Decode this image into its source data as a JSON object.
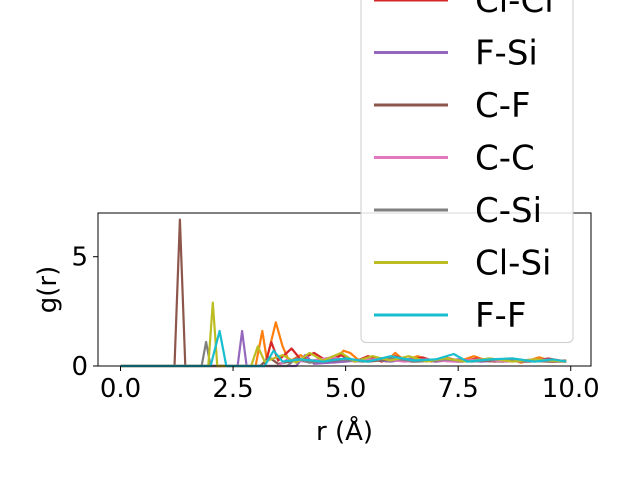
{
  "chart_data": {
    "type": "line",
    "title": "",
    "xlabel": "r (Å)",
    "ylabel": "g(r)",
    "xlim": [
      -0.5,
      10.45
    ],
    "ylim": [
      0,
      7.0
    ],
    "xticks": [
      0.0,
      2.5,
      5.0,
      7.5,
      10.0
    ],
    "xtick_labels": [
      "0.0",
      "2.5",
      "5.0",
      "7.5",
      "10.0"
    ],
    "yticks": [
      0,
      5
    ],
    "ytick_labels": [
      "0",
      "5"
    ],
    "grid": false,
    "legend_position": "upper-right (extends beyond axes top)",
    "series": [
      {
        "color": "#ff7f0e",
        "points": [
          [
            0,
            0
          ],
          [
            3.0,
            0
          ],
          [
            3.15,
            1.6
          ],
          [
            3.25,
            0.3
          ],
          [
            3.45,
            2.0
          ],
          [
            3.6,
            0.9
          ],
          [
            3.75,
            0.2
          ],
          [
            4.0,
            0.5
          ],
          [
            4.2,
            0.2
          ],
          [
            4.5,
            0.35
          ],
          [
            4.75,
            0.15
          ],
          [
            4.95,
            0.7
          ],
          [
            5.1,
            0.6
          ],
          [
            5.3,
            0.25
          ],
          [
            5.6,
            0.45
          ],
          [
            5.9,
            0.2
          ],
          [
            6.1,
            0.6
          ],
          [
            6.3,
            0.25
          ],
          [
            6.6,
            0.45
          ],
          [
            6.9,
            0.2
          ],
          [
            7.2,
            0.4
          ],
          [
            7.5,
            0.2
          ],
          [
            7.85,
            0.45
          ],
          [
            8.2,
            0.2
          ],
          [
            8.6,
            0.35
          ],
          [
            8.9,
            0.15
          ],
          [
            9.3,
            0.4
          ],
          [
            9.6,
            0.2
          ],
          [
            9.9,
            0.25
          ]
        ]
      },
      {
        "name": "Cl-Cl",
        "color": "#d62728",
        "points": [
          [
            0,
            0
          ],
          [
            3.2,
            0
          ],
          [
            3.35,
            1.1
          ],
          [
            3.5,
            0.25
          ],
          [
            3.8,
            0.8
          ],
          [
            4.0,
            0.3
          ],
          [
            4.3,
            0.6
          ],
          [
            4.6,
            0.2
          ],
          [
            4.9,
            0.5
          ],
          [
            5.2,
            0.2
          ],
          [
            5.5,
            0.45
          ],
          [
            5.8,
            0.2
          ],
          [
            6.1,
            0.45
          ],
          [
            6.4,
            0.25
          ],
          [
            6.7,
            0.4
          ],
          [
            7.0,
            0.2
          ],
          [
            7.3,
            0.35
          ],
          [
            7.6,
            0.2
          ],
          [
            7.9,
            0.35
          ],
          [
            8.3,
            0.2
          ],
          [
            8.7,
            0.3
          ],
          [
            9.1,
            0.2
          ],
          [
            9.5,
            0.35
          ],
          [
            9.9,
            0.2
          ]
        ]
      },
      {
        "name": "F-Si",
        "color": "#9467bd",
        "points": [
          [
            0,
            0
          ],
          [
            2.6,
            0
          ],
          [
            2.7,
            1.6
          ],
          [
            2.8,
            0
          ],
          [
            3.9,
            0
          ],
          [
            4.1,
            0.5
          ],
          [
            4.3,
            0.1
          ],
          [
            5.0,
            0.2
          ],
          [
            5.5,
            0.3
          ],
          [
            6.0,
            0.2
          ],
          [
            6.5,
            0.35
          ],
          [
            7.0,
            0.2
          ],
          [
            7.5,
            0.3
          ],
          [
            8.0,
            0.2
          ],
          [
            8.5,
            0.25
          ],
          [
            9.0,
            0.2
          ],
          [
            9.5,
            0.3
          ],
          [
            9.9,
            0.2
          ]
        ]
      },
      {
        "name": "C-F",
        "color": "#8c564b",
        "points": [
          [
            0,
            0
          ],
          [
            1.2,
            0
          ],
          [
            1.32,
            6.7
          ],
          [
            1.44,
            0
          ],
          [
            3.1,
            0
          ],
          [
            3.3,
            0.4
          ],
          [
            3.5,
            0.1
          ],
          [
            4.0,
            0.3
          ],
          [
            4.5,
            0.2
          ],
          [
            5.0,
            0.3
          ],
          [
            5.5,
            0.2
          ],
          [
            6.0,
            0.3
          ],
          [
            6.5,
            0.2
          ],
          [
            7.0,
            0.25
          ],
          [
            7.5,
            0.2
          ],
          [
            8.0,
            0.25
          ],
          [
            8.5,
            0.2
          ],
          [
            9.0,
            0.25
          ],
          [
            9.5,
            0.2
          ],
          [
            9.9,
            0.2
          ]
        ]
      },
      {
        "name": "C-C",
        "color": "#e377c2",
        "points": [
          [
            0,
            0
          ],
          [
            3.5,
            0
          ],
          [
            3.7,
            0.3
          ],
          [
            4.1,
            0.2
          ],
          [
            4.7,
            0.4
          ],
          [
            5.2,
            0.2
          ],
          [
            5.8,
            0.35
          ],
          [
            6.3,
            0.2
          ],
          [
            6.8,
            0.3
          ],
          [
            7.4,
            0.2
          ],
          [
            8.0,
            0.3
          ],
          [
            8.6,
            0.2
          ],
          [
            9.2,
            0.3
          ],
          [
            9.9,
            0.2
          ]
        ]
      },
      {
        "name": "C-Si",
        "color": "#7f7f7f",
        "points": [
          [
            0,
            0
          ],
          [
            1.8,
            0
          ],
          [
            1.9,
            1.1
          ],
          [
            2.0,
            0
          ],
          [
            3.7,
            0
          ],
          [
            3.9,
            0.35
          ],
          [
            4.2,
            0.15
          ],
          [
            4.8,
            0.3
          ],
          [
            5.4,
            0.2
          ],
          [
            6.0,
            0.35
          ],
          [
            6.6,
            0.2
          ],
          [
            7.2,
            0.3
          ],
          [
            7.8,
            0.2
          ],
          [
            8.4,
            0.3
          ],
          [
            9.0,
            0.2
          ],
          [
            9.9,
            0.25
          ]
        ]
      },
      {
        "name": "Cl-Si",
        "color": "#bcbd22",
        "points": [
          [
            0,
            0
          ],
          [
            1.95,
            0
          ],
          [
            2.05,
            2.9
          ],
          [
            2.15,
            0
          ],
          [
            2.9,
            0
          ],
          [
            3.05,
            0.9
          ],
          [
            3.2,
            0.2
          ],
          [
            3.6,
            0.5
          ],
          [
            3.9,
            0.15
          ],
          [
            4.2,
            0.6
          ],
          [
            4.5,
            0.25
          ],
          [
            4.9,
            0.6
          ],
          [
            5.2,
            0.2
          ],
          [
            5.6,
            0.45
          ],
          [
            6.0,
            0.25
          ],
          [
            6.4,
            0.45
          ],
          [
            6.8,
            0.2
          ],
          [
            7.2,
            0.35
          ],
          [
            7.7,
            0.2
          ],
          [
            8.2,
            0.35
          ],
          [
            8.7,
            0.2
          ],
          [
            9.2,
            0.3
          ],
          [
            9.9,
            0.2
          ]
        ]
      },
      {
        "name": "F-F",
        "color": "#17becf",
        "points": [
          [
            0,
            0
          ],
          [
            2.0,
            0
          ],
          [
            2.2,
            1.6
          ],
          [
            2.35,
            0
          ],
          [
            3.2,
            0
          ],
          [
            3.4,
            0.7
          ],
          [
            3.6,
            0.2
          ],
          [
            4.0,
            0.3
          ],
          [
            4.5,
            0.2
          ],
          [
            5.0,
            0.35
          ],
          [
            5.5,
            0.2
          ],
          [
            6.0,
            0.45
          ],
          [
            6.5,
            0.25
          ],
          [
            7.0,
            0.3
          ],
          [
            7.4,
            0.55
          ],
          [
            7.7,
            0.2
          ],
          [
            8.2,
            0.3
          ],
          [
            8.7,
            0.35
          ],
          [
            9.2,
            0.2
          ],
          [
            9.6,
            0.3
          ],
          [
            9.9,
            0.2
          ]
        ]
      }
    ]
  }
}
